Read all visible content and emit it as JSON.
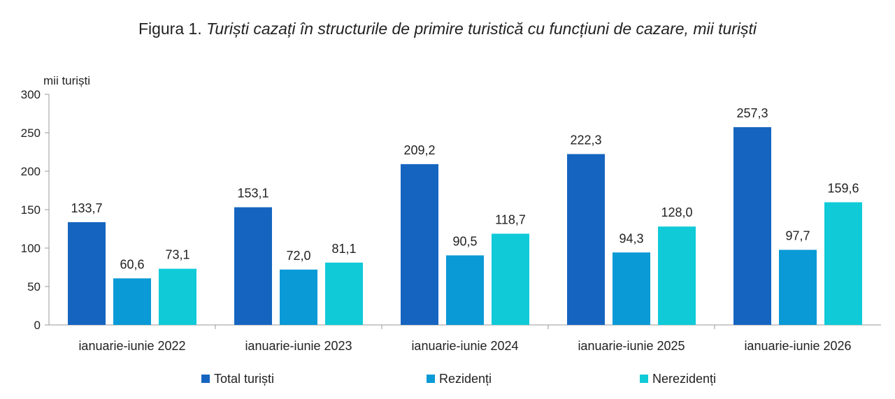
{
  "chart_data": {
    "type": "bar",
    "title_prefix": "Figura 1.",
    "title": "Turiști cazați în structurile de primire turistică cu funcțiuni de cazare, mii turiști",
    "ylabel": "mii turiști",
    "xlabel": "",
    "ylim": [
      0,
      300
    ],
    "yticks": [
      0,
      50,
      100,
      150,
      200,
      250,
      300
    ],
    "categories": [
      "ianuarie-iunie 2022",
      "ianuarie-iunie 2023",
      "ianuarie-iunie 2024",
      "ianuarie-iunie 2025",
      "ianuarie-iunie 2026"
    ],
    "series": [
      {
        "name": "Total turiști",
        "color": "#1565c0",
        "values": [
          133.7,
          153.1,
          209.2,
          222.3,
          257.3
        ],
        "labels": [
          "133,7",
          "153,1",
          "209,2",
          "222,3",
          "257,3"
        ]
      },
      {
        "name": "Rezidenți",
        "color": "#0a9ad6",
        "values": [
          60.6,
          72.0,
          90.5,
          94.3,
          97.7
        ],
        "labels": [
          "60,6",
          "72,0",
          "90,5",
          "94,3",
          "97,7"
        ]
      },
      {
        "name": "Nerezidenți",
        "color": "#10cad8",
        "values": [
          73.1,
          81.1,
          118.7,
          128.0,
          159.6
        ],
        "labels": [
          "73,1",
          "81,1",
          "118,7",
          "128,0",
          "159,6"
        ]
      }
    ],
    "grid": false,
    "legend": "bottom"
  }
}
